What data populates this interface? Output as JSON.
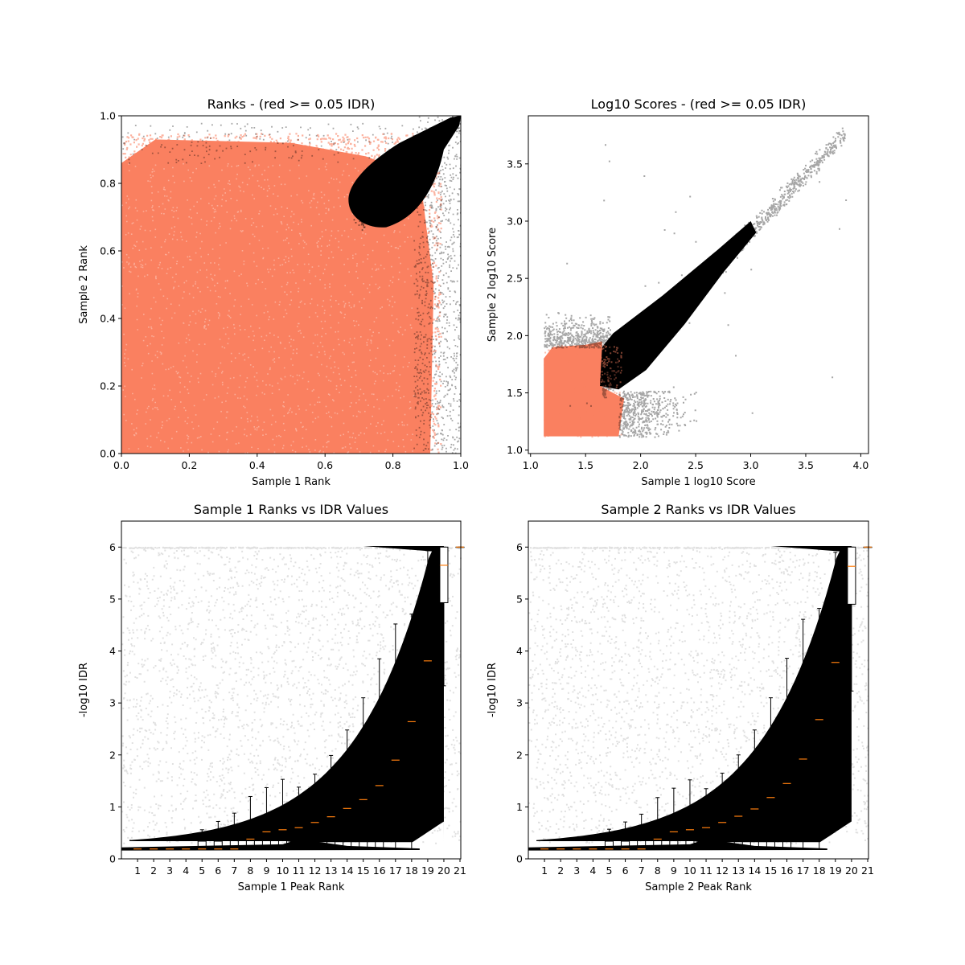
{
  "colors": {
    "pass": "#000000",
    "fail": "#fa8060",
    "median": "#ff7f0e"
  },
  "chart_data": [
    {
      "type": "scatter",
      "title": "Ranks - (red >= 0.05 IDR)",
      "xlabel": "Sample 1 Rank",
      "ylabel": "Sample 2 Rank",
      "xlim": [
        0,
        1
      ],
      "ylim": [
        0,
        1
      ],
      "xticks": [
        "0.0",
        "0.2",
        "0.4",
        "0.6",
        "0.8",
        "1.0"
      ],
      "yticks": [
        "0.0",
        "0.2",
        "0.4",
        "0.6",
        "0.8",
        "1.0"
      ],
      "series": [
        {
          "color": "#fa8060",
          "region": "rank < ~0.92 on both axes (IDR >= 0.05)"
        },
        {
          "color": "#000000",
          "region": "upper-right lobe from (0.67,0.67) to (1,1) plus sparse background"
        }
      ]
    },
    {
      "type": "scatter",
      "title": "Log10 Scores - (red >= 0.05 IDR)",
      "xlabel": "Sample 1 log10 Score",
      "ylabel": "Sample 2 log10 Score",
      "xlim": [
        0.98,
        4.07
      ],
      "ylim": [
        0.97,
        3.92
      ],
      "xticks": [
        "1.0",
        "1.5",
        "2.0",
        "2.5",
        "3.0",
        "3.5",
        "4.0"
      ],
      "yticks": [
        "1.0",
        "1.5",
        "2.0",
        "2.5",
        "3.0",
        "3.5"
      ],
      "series": [
        {
          "color": "#fa8060",
          "region": "x 1.12-1.85, y 1.12-1.95"
        },
        {
          "color": "#000000",
          "region": "diagonal band from (1.65,1.55) to (3.9,3.8)"
        }
      ]
    },
    {
      "type": "box",
      "title": "Sample 1 Ranks vs IDR Values",
      "xlabel": "Sample 1 Peak Rank",
      "ylabel": "-log10 IDR",
      "ylim": [
        0,
        6.5
      ],
      "yticks": [
        "0",
        "1",
        "2",
        "3",
        "4",
        "5",
        "6"
      ],
      "categories": [
        "1",
        "2",
        "3",
        "4",
        "5",
        "6",
        "7",
        "8",
        "9",
        "10",
        "11",
        "12",
        "13",
        "14",
        "15",
        "16",
        "17",
        "18",
        "19",
        "20",
        "21"
      ],
      "boxes": [
        {
          "whislo": 0.19,
          "q1": 0.19,
          "med": 0.19,
          "q3": 0.19,
          "whishi": 0.19
        },
        {
          "whislo": 0.19,
          "q1": 0.19,
          "med": 0.19,
          "q3": 0.19,
          "whishi": 0.19
        },
        {
          "whislo": 0.19,
          "q1": 0.19,
          "med": 0.19,
          "q3": 0.19,
          "whishi": 0.19
        },
        {
          "whislo": 0.19,
          "q1": 0.19,
          "med": 0.19,
          "q3": 0.19,
          "whishi": 0.19
        },
        {
          "whislo": 0.19,
          "q1": 0.19,
          "med": 0.19,
          "q3": 0.34,
          "whishi": 0.56
        },
        {
          "whislo": 0.19,
          "q1": 0.19,
          "med": 0.19,
          "q3": 0.34,
          "whishi": 0.72
        },
        {
          "whislo": 0.19,
          "q1": 0.19,
          "med": 0.19,
          "q3": 0.36,
          "whishi": 0.88
        },
        {
          "whislo": 0.19,
          "q1": 0.19,
          "med": 0.38,
          "q3": 0.42,
          "whishi": 1.2
        },
        {
          "whislo": 0.19,
          "q1": 0.19,
          "med": 0.52,
          "q3": 0.56,
          "whishi": 1.37
        },
        {
          "whislo": 0.19,
          "q1": 0.19,
          "med": 0.56,
          "q3": 0.6,
          "whishi": 1.53
        },
        {
          "whislo": 0.19,
          "q1": 0.19,
          "med": 0.6,
          "q3": 0.64,
          "whishi": 1.38
        },
        {
          "whislo": 0.19,
          "q1": 0.19,
          "med": 0.7,
          "q3": 0.74,
          "whishi": 1.63
        },
        {
          "whislo": 0.19,
          "q1": 0.19,
          "med": 0.81,
          "q3": 0.86,
          "whishi": 1.99
        },
        {
          "whislo": 0.19,
          "q1": 0.19,
          "med": 0.97,
          "q3": 1.02,
          "whishi": 2.48
        },
        {
          "whislo": 0.19,
          "q1": 0.19,
          "med": 1.14,
          "q3": 1.2,
          "whishi": 3.1
        },
        {
          "whislo": 0.19,
          "q1": 0.19,
          "med": 1.41,
          "q3": 1.5,
          "whishi": 3.85
        },
        {
          "whislo": 0.19,
          "q1": 0.82,
          "med": 1.9,
          "q3": 1.99,
          "whishi": 4.52
        },
        {
          "whislo": 0.19,
          "q1": 1.89,
          "med": 2.64,
          "q3": 2.73,
          "whishi": 4.71
        },
        {
          "whislo": 1.86,
          "q1": 3.4,
          "med": 3.81,
          "q3": 3.88,
          "whishi": 5.93
        },
        {
          "whislo": 3.33,
          "q1": 4.93,
          "med": 5.65,
          "q3": 6.0,
          "whishi": 6.0
        },
        {
          "whislo": 6.0,
          "q1": 6.0,
          "med": 6.0,
          "q3": 6.0,
          "whishi": 6.0
        }
      ]
    },
    {
      "type": "box",
      "title": "Sample 2 Ranks vs IDR Values",
      "xlabel": "Sample 2 Peak Rank",
      "ylabel": "-log10 IDR",
      "ylim": [
        0,
        6.5
      ],
      "yticks": [
        "0",
        "1",
        "2",
        "3",
        "4",
        "5",
        "6"
      ],
      "categories": [
        "1",
        "2",
        "3",
        "4",
        "5",
        "6",
        "7",
        "8",
        "9",
        "10",
        "11",
        "12",
        "13",
        "14",
        "15",
        "16",
        "17",
        "18",
        "19",
        "20",
        "21"
      ],
      "boxes": [
        {
          "whislo": 0.19,
          "q1": 0.19,
          "med": 0.19,
          "q3": 0.19,
          "whishi": 0.19
        },
        {
          "whislo": 0.19,
          "q1": 0.19,
          "med": 0.19,
          "q3": 0.19,
          "whishi": 0.19
        },
        {
          "whislo": 0.19,
          "q1": 0.19,
          "med": 0.19,
          "q3": 0.19,
          "whishi": 0.19
        },
        {
          "whislo": 0.19,
          "q1": 0.19,
          "med": 0.19,
          "q3": 0.19,
          "whishi": 0.19
        },
        {
          "whislo": 0.19,
          "q1": 0.19,
          "med": 0.19,
          "q3": 0.34,
          "whishi": 0.57
        },
        {
          "whislo": 0.19,
          "q1": 0.19,
          "med": 0.19,
          "q3": 0.34,
          "whishi": 0.71
        },
        {
          "whislo": 0.19,
          "q1": 0.19,
          "med": 0.19,
          "q3": 0.36,
          "whishi": 0.86
        },
        {
          "whislo": 0.19,
          "q1": 0.19,
          "med": 0.38,
          "q3": 0.42,
          "whishi": 1.18
        },
        {
          "whislo": 0.19,
          "q1": 0.19,
          "med": 0.52,
          "q3": 0.56,
          "whishi": 1.36
        },
        {
          "whislo": 0.19,
          "q1": 0.19,
          "med": 0.56,
          "q3": 0.6,
          "whishi": 1.52
        },
        {
          "whislo": 0.19,
          "q1": 0.19,
          "med": 0.6,
          "q3": 0.64,
          "whishi": 1.35
        },
        {
          "whislo": 0.19,
          "q1": 0.19,
          "med": 0.7,
          "q3": 0.74,
          "whishi": 1.65
        },
        {
          "whislo": 0.19,
          "q1": 0.19,
          "med": 0.82,
          "q3": 0.86,
          "whishi": 2.0
        },
        {
          "whislo": 0.19,
          "q1": 0.19,
          "med": 0.96,
          "q3": 1.02,
          "whishi": 2.48
        },
        {
          "whislo": 0.19,
          "q1": 0.19,
          "med": 1.18,
          "q3": 1.22,
          "whishi": 3.1
        },
        {
          "whislo": 0.19,
          "q1": 0.19,
          "med": 1.45,
          "q3": 1.5,
          "whishi": 3.86
        },
        {
          "whislo": 0.19,
          "q1": 0.82,
          "med": 1.92,
          "q3": 1.99,
          "whishi": 4.61
        },
        {
          "whislo": 0.19,
          "q1": 1.86,
          "med": 2.68,
          "q3": 2.73,
          "whishi": 4.82
        },
        {
          "whislo": 1.82,
          "q1": 3.35,
          "med": 3.78,
          "q3": 3.88,
          "whishi": 5.9
        },
        {
          "whislo": 3.23,
          "q1": 4.9,
          "med": 5.63,
          "q3": 6.0,
          "whishi": 6.0
        },
        {
          "whislo": 6.0,
          "q1": 6.0,
          "med": 6.0,
          "q3": 6.0,
          "whishi": 6.0
        }
      ]
    }
  ]
}
